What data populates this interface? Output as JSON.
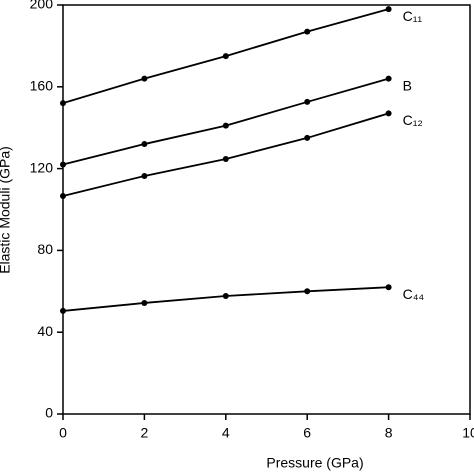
{
  "chart_data": {
    "type": "line",
    "xlabel": "Pressure (GPa)",
    "ylabel": "Elastic Moduli (GPa)",
    "x": [
      0,
      2,
      4,
      6,
      8
    ],
    "series": [
      {
        "name": "C₁₁",
        "color": "#000000",
        "values": [
          152,
          164,
          175,
          187,
          198
        ]
      },
      {
        "name": "B",
        "color": "#000000",
        "values": [
          122,
          132,
          141,
          152.6,
          164
        ]
      },
      {
        "name": "C₁₂",
        "color": "#000000",
        "values": [
          106.6,
          116.4,
          124.7,
          135,
          147
        ]
      },
      {
        "name": "C₄₄",
        "color": "#000000",
        "values": [
          50.4,
          54.3,
          57.7,
          60,
          62
        ]
      }
    ],
    "xlim": [
      0,
      10
    ],
    "xticks": [
      0,
      2,
      4,
      6,
      8,
      10
    ],
    "ylim": [
      0,
      200
    ],
    "yticks": [
      0,
      40,
      80,
      120,
      160,
      200
    ]
  }
}
